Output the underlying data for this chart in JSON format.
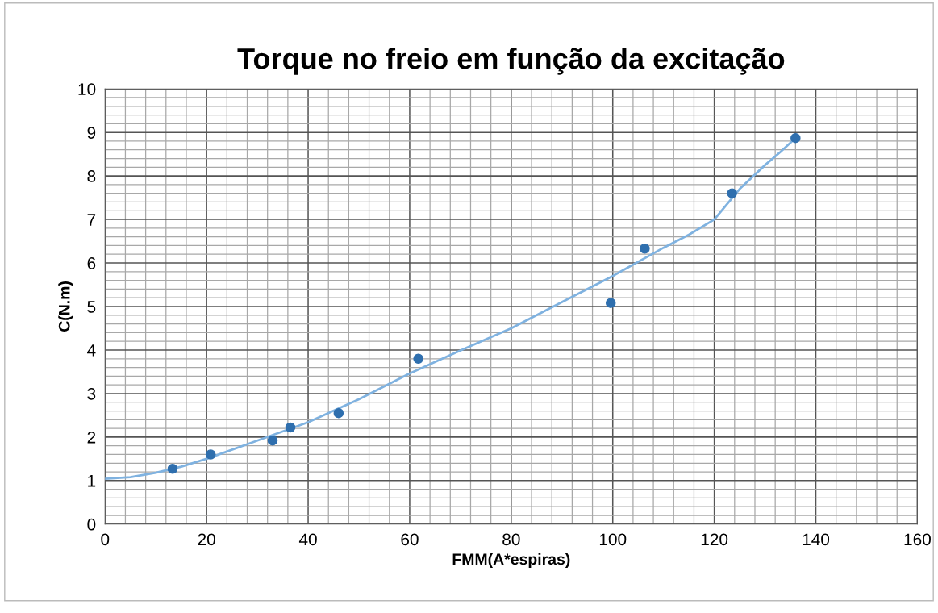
{
  "chart_data": {
    "type": "scatter",
    "title": "Torque no freio em função da excitação",
    "xlabel": "FMM(A*espiras)",
    "ylabel": "C(N.m)",
    "xlim": [
      0,
      160
    ],
    "xticks": [
      0,
      20,
      40,
      60,
      80,
      100,
      120,
      140,
      160
    ],
    "ylim": [
      0,
      10
    ],
    "yticks": [
      0,
      1,
      2,
      3,
      4,
      5,
      6,
      7,
      8,
      9,
      10
    ],
    "grid": true,
    "series": [
      {
        "marker": "circle",
        "color": "#2f6fae",
        "x": [
          13.3,
          20.8,
          33,
          36.5,
          46,
          61.7,
          99.6,
          106.3,
          123.5,
          136
        ],
        "values": [
          1.27,
          1.6,
          1.92,
          2.22,
          2.55,
          3.8,
          5.08,
          6.33,
          7.6,
          8.87
        ]
      },
      {
        "type": "line",
        "color": "#7fb2e0",
        "line_style": "solid",
        "marker": "none",
        "x": [
          0,
          5,
          10,
          15,
          20,
          30,
          40,
          50,
          60,
          70,
          80,
          90,
          100,
          110,
          115,
          120,
          125,
          130,
          133,
          136
        ],
        "values": [
          1.04,
          1.08,
          1.18,
          1.32,
          1.5,
          1.92,
          2.34,
          2.87,
          3.46,
          3.99,
          4.5,
          5.1,
          5.7,
          6.35,
          6.65,
          7.0,
          7.7,
          8.25,
          8.55,
          8.87
        ]
      }
    ]
  }
}
